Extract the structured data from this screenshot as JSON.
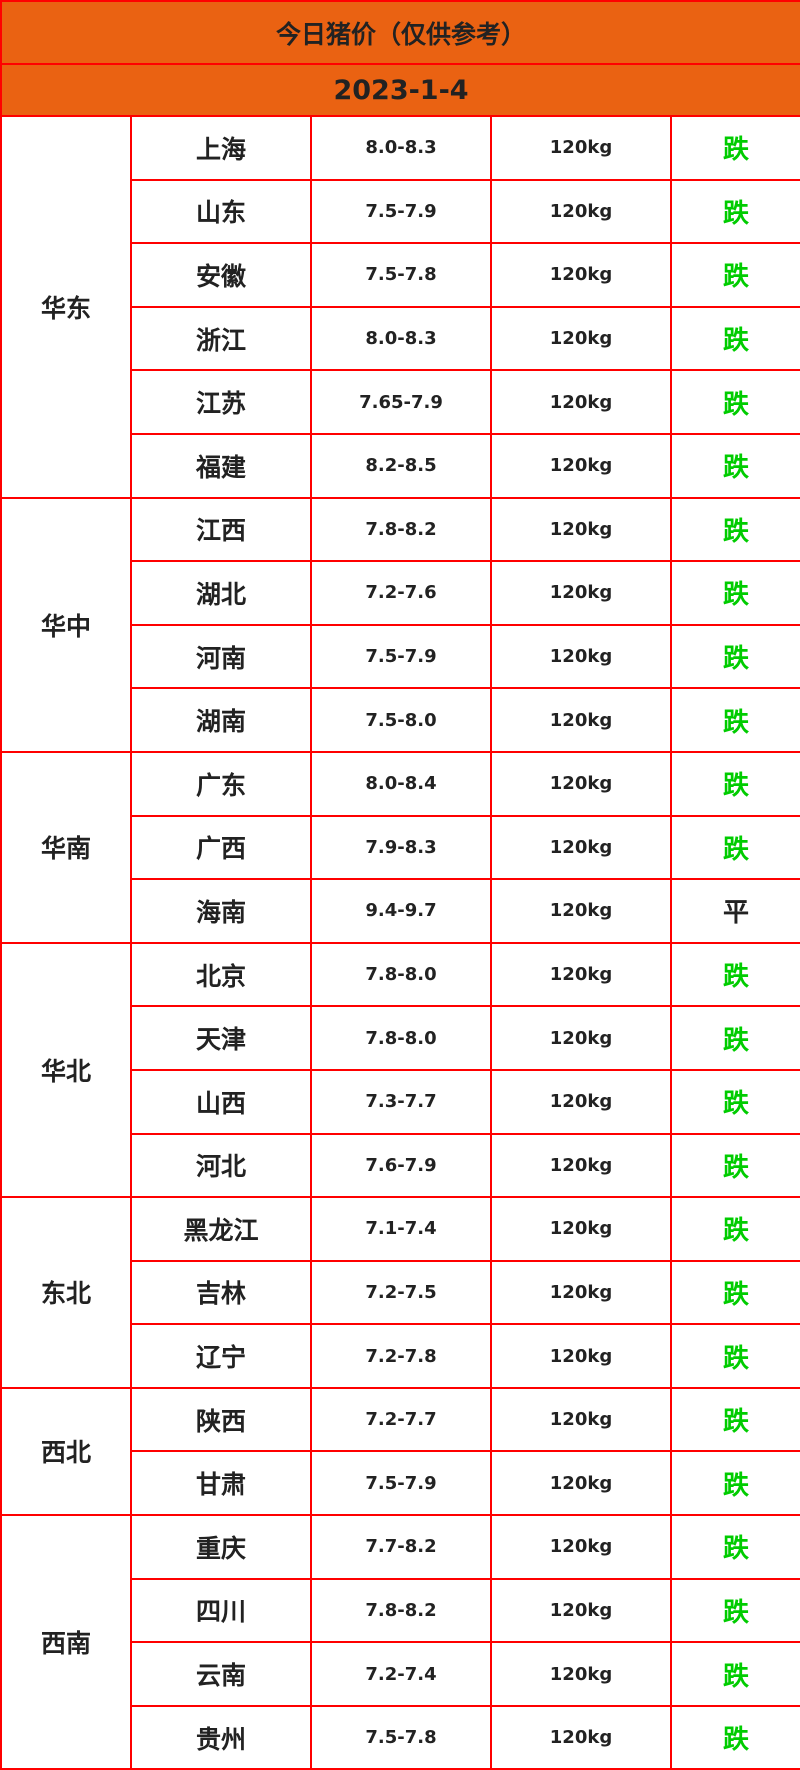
{
  "title": "今日猪价（仅供参考）",
  "date": "2023-1-4",
  "colors": {
    "header_bg": "#ea6212",
    "border": "#ff0000",
    "down": "#00cc00",
    "flat": "#222222"
  },
  "regions": [
    {
      "name": "华东",
      "rows": [
        {
          "province": "上海",
          "price": "8.0-8.3",
          "weight": "120kg",
          "trend": "跌"
        },
        {
          "province": "山东",
          "price": "7.5-7.9",
          "weight": "120kg",
          "trend": "跌"
        },
        {
          "province": "安徽",
          "price": "7.5-7.8",
          "weight": "120kg",
          "trend": "跌"
        },
        {
          "province": "浙江",
          "price": "8.0-8.3",
          "weight": "120kg",
          "trend": "跌"
        },
        {
          "province": "江苏",
          "price": "7.65-7.9",
          "weight": "120kg",
          "trend": "跌"
        },
        {
          "province": "福建",
          "price": "8.2-8.5",
          "weight": "120kg",
          "trend": "跌"
        }
      ]
    },
    {
      "name": "华中",
      "rows": [
        {
          "province": "江西",
          "price": "7.8-8.2",
          "weight": "120kg",
          "trend": "跌"
        },
        {
          "province": "湖北",
          "price": "7.2-7.6",
          "weight": "120kg",
          "trend": "跌"
        },
        {
          "province": "河南",
          "price": "7.5-7.9",
          "weight": "120kg",
          "trend": "跌"
        },
        {
          "province": "湖南",
          "price": "7.5-8.0",
          "weight": "120kg",
          "trend": "跌"
        }
      ]
    },
    {
      "name": "华南",
      "rows": [
        {
          "province": "广东",
          "price": "8.0-8.4",
          "weight": "120kg",
          "trend": "跌"
        },
        {
          "province": "广西",
          "price": "7.9-8.3",
          "weight": "120kg",
          "trend": "跌"
        },
        {
          "province": "海南",
          "price": "9.4-9.7",
          "weight": "120kg",
          "trend": "平"
        }
      ]
    },
    {
      "name": "华北",
      "rows": [
        {
          "province": "北京",
          "price": "7.8-8.0",
          "weight": "120kg",
          "trend": "跌"
        },
        {
          "province": "天津",
          "price": "7.8-8.0",
          "weight": "120kg",
          "trend": "跌"
        },
        {
          "province": "山西",
          "price": "7.3-7.7",
          "weight": "120kg",
          "trend": "跌"
        },
        {
          "province": "河北",
          "price": "7.6-7.9",
          "weight": "120kg",
          "trend": "跌"
        }
      ]
    },
    {
      "name": "东北",
      "rows": [
        {
          "province": "黑龙江",
          "price": "7.1-7.4",
          "weight": "120kg",
          "trend": "跌"
        },
        {
          "province": "吉林",
          "price": "7.2-7.5",
          "weight": "120kg",
          "trend": "跌"
        },
        {
          "province": "辽宁",
          "price": "7.2-7.8",
          "weight": "120kg",
          "trend": "跌"
        }
      ]
    },
    {
      "name": "西北",
      "rows": [
        {
          "province": "陕西",
          "price": "7.2-7.7",
          "weight": "120kg",
          "trend": "跌"
        },
        {
          "province": "甘肃",
          "price": "7.5-7.9",
          "weight": "120kg",
          "trend": "跌"
        }
      ]
    },
    {
      "name": "西南",
      "rows": [
        {
          "province": "重庆",
          "price": "7.7-8.2",
          "weight": "120kg",
          "trend": "跌"
        },
        {
          "province": "四川",
          "price": "7.8-8.2",
          "weight": "120kg",
          "trend": "跌"
        },
        {
          "province": "云南",
          "price": "7.2-7.4",
          "weight": "120kg",
          "trend": "跌"
        },
        {
          "province": "贵州",
          "price": "7.5-7.8",
          "weight": "120kg",
          "trend": "跌"
        }
      ]
    }
  ]
}
